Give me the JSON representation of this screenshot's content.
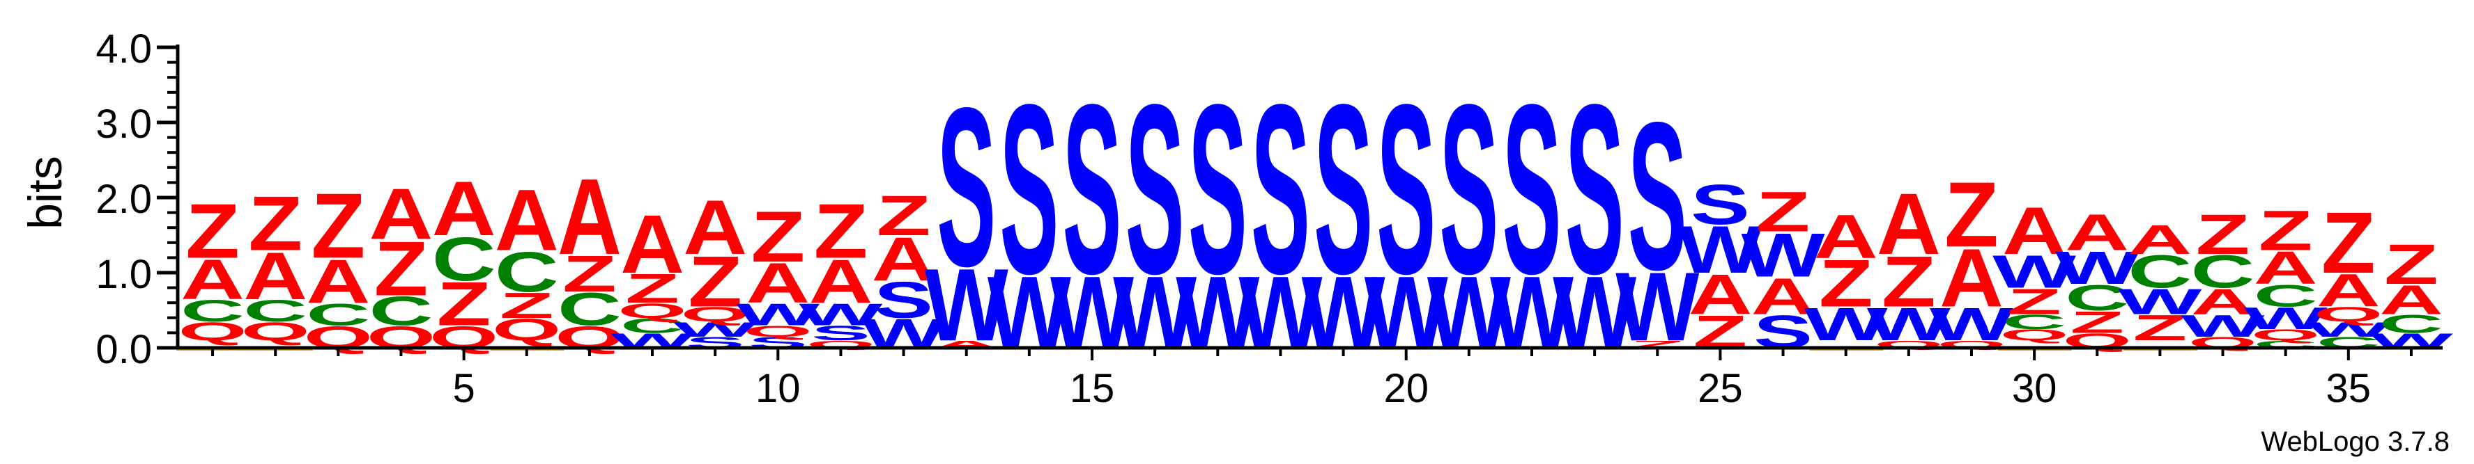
{
  "chart_data": {
    "type": "sequence-logo",
    "ylabel": "bits",
    "ylim": [
      0,
      4
    ],
    "yticks": [
      0.0,
      1.0,
      2.0,
      3.0,
      4.0
    ],
    "ytick_labels": [
      "0.0",
      "1.0",
      "2.0",
      "3.0",
      "4.0"
    ],
    "xrange": [
      1,
      36
    ],
    "xticks": [
      5,
      10,
      15,
      20,
      25,
      30,
      35
    ],
    "xtick_labels": [
      "5",
      "10",
      "15",
      "20",
      "25",
      "30",
      "35"
    ],
    "colors": {
      "Z": "#ff0000",
      "A": "#ff0000",
      "Q": "#ff0000",
      "C": "#008000",
      "S": "#0000ff",
      "W": "#0000ff",
      "X": "#ffa500"
    },
    "positions": [
      {
        "pos": 1,
        "stack": [
          {
            "letter": "X",
            "bits": 0.1
          },
          {
            "letter": "Q",
            "bits": 0.25
          },
          {
            "letter": "C",
            "bits": 0.3
          },
          {
            "letter": "A",
            "bits": 0.55
          },
          {
            "letter": "Z",
            "bits": 0.75
          }
        ]
      },
      {
        "pos": 2,
        "stack": [
          {
            "letter": "X",
            "bits": 0.1
          },
          {
            "letter": "Q",
            "bits": 0.25
          },
          {
            "letter": "C",
            "bits": 0.3
          },
          {
            "letter": "A",
            "bits": 0.65
          },
          {
            "letter": "Z",
            "bits": 0.75
          }
        ]
      },
      {
        "pos": 3,
        "stack": [
          {
            "letter": "Q",
            "bits": 0.3
          },
          {
            "letter": "C",
            "bits": 0.3
          },
          {
            "letter": "A",
            "bits": 0.6
          },
          {
            "letter": "Z",
            "bits": 0.9
          }
        ]
      },
      {
        "pos": 4,
        "stack": [
          {
            "letter": "Q",
            "bits": 0.3
          },
          {
            "letter": "C",
            "bits": 0.4
          },
          {
            "letter": "Z",
            "bits": 0.75
          },
          {
            "letter": "A",
            "bits": 0.7
          }
        ]
      },
      {
        "pos": 5,
        "stack": [
          {
            "letter": "Q",
            "bits": 0.3
          },
          {
            "letter": "Z",
            "bits": 0.6
          },
          {
            "letter": "C",
            "bits": 0.6
          },
          {
            "letter": "A",
            "bits": 0.75
          }
        ]
      },
      {
        "pos": 6,
        "stack": [
          {
            "letter": "X",
            "bits": 0.1
          },
          {
            "letter": "Q",
            "bits": 0.3
          },
          {
            "letter": "Z",
            "bits": 0.35
          },
          {
            "letter": "C",
            "bits": 0.55
          },
          {
            "letter": "A",
            "bits": 0.85
          }
        ]
      },
      {
        "pos": 7,
        "stack": [
          {
            "letter": "Q",
            "bits": 0.3
          },
          {
            "letter": "C",
            "bits": 0.45
          },
          {
            "letter": "Z",
            "bits": 0.5
          },
          {
            "letter": "A",
            "bits": 1.05
          }
        ]
      },
      {
        "pos": 8,
        "stack": [
          {
            "letter": "W",
            "bits": 0.2
          },
          {
            "letter": "C",
            "bits": 0.2
          },
          {
            "letter": "Q",
            "bits": 0.2
          },
          {
            "letter": "Z",
            "bits": 0.4
          },
          {
            "letter": "A",
            "bits": 0.8
          }
        ]
      },
      {
        "pos": 9,
        "stack": [
          {
            "letter": "S",
            "bits": 0.15
          },
          {
            "letter": "W",
            "bits": 0.2
          },
          {
            "letter": "Q",
            "bits": 0.2
          },
          {
            "letter": "Z",
            "bits": 0.7
          },
          {
            "letter": "A",
            "bits": 0.75
          }
        ]
      },
      {
        "pos": 10,
        "stack": [
          {
            "letter": "S",
            "bits": 0.15
          },
          {
            "letter": "Q",
            "bits": 0.15
          },
          {
            "letter": "W",
            "bits": 0.3
          },
          {
            "letter": "A",
            "bits": 0.55
          },
          {
            "letter": "Z",
            "bits": 0.7
          }
        ]
      },
      {
        "pos": 11,
        "stack": [
          {
            "letter": "Q",
            "bits": 0.1
          },
          {
            "letter": "S",
            "bits": 0.2
          },
          {
            "letter": "W",
            "bits": 0.3
          },
          {
            "letter": "A",
            "bits": 0.6
          },
          {
            "letter": "Z",
            "bits": 0.75
          }
        ]
      },
      {
        "pos": 12,
        "stack": [
          {
            "letter": "W",
            "bits": 0.4
          },
          {
            "letter": "S",
            "bits": 0.5
          },
          {
            "letter": "A",
            "bits": 0.6
          },
          {
            "letter": "Z",
            "bits": 0.55
          }
        ]
      },
      {
        "pos": 13,
        "stack": [
          {
            "letter": "A",
            "bits": 0.1
          },
          {
            "letter": "W",
            "bits": 1.0
          },
          {
            "letter": "S",
            "bits": 2.2
          }
        ]
      },
      {
        "pos": 14,
        "stack": [
          {
            "letter": "W",
            "bits": 1.0
          },
          {
            "letter": "S",
            "bits": 2.35
          }
        ]
      },
      {
        "pos": 15,
        "stack": [
          {
            "letter": "W",
            "bits": 1.0
          },
          {
            "letter": "S",
            "bits": 2.35
          }
        ]
      },
      {
        "pos": 16,
        "stack": [
          {
            "letter": "W",
            "bits": 1.0
          },
          {
            "letter": "S",
            "bits": 2.35
          }
        ]
      },
      {
        "pos": 17,
        "stack": [
          {
            "letter": "W",
            "bits": 1.0
          },
          {
            "letter": "S",
            "bits": 2.35
          }
        ]
      },
      {
        "pos": 18,
        "stack": [
          {
            "letter": "W",
            "bits": 1.0
          },
          {
            "letter": "S",
            "bits": 2.35
          }
        ]
      },
      {
        "pos": 19,
        "stack": [
          {
            "letter": "W",
            "bits": 1.0
          },
          {
            "letter": "S",
            "bits": 2.35
          }
        ]
      },
      {
        "pos": 20,
        "stack": [
          {
            "letter": "W",
            "bits": 1.0
          },
          {
            "letter": "S",
            "bits": 2.35
          }
        ]
      },
      {
        "pos": 21,
        "stack": [
          {
            "letter": "W",
            "bits": 1.0
          },
          {
            "letter": "S",
            "bits": 2.35
          }
        ]
      },
      {
        "pos": 22,
        "stack": [
          {
            "letter": "W",
            "bits": 1.0
          },
          {
            "letter": "S",
            "bits": 2.35
          }
        ]
      },
      {
        "pos": 23,
        "stack": [
          {
            "letter": "W",
            "bits": 1.0
          },
          {
            "letter": "S",
            "bits": 2.35
          }
        ]
      },
      {
        "pos": 24,
        "stack": [
          {
            "letter": "Z",
            "bits": 0.1
          },
          {
            "letter": "W",
            "bits": 0.95
          },
          {
            "letter": "S",
            "bits": 2.05
          }
        ]
      },
      {
        "pos": 25,
        "stack": [
          {
            "letter": "Z",
            "bits": 0.45
          },
          {
            "letter": "A",
            "bits": 0.55
          },
          {
            "letter": "W",
            "bits": 0.65
          },
          {
            "letter": "S",
            "bits": 0.55
          }
        ]
      },
      {
        "pos": 26,
        "stack": [
          {
            "letter": "S",
            "bits": 0.45
          },
          {
            "letter": "A",
            "bits": 0.5
          },
          {
            "letter": "W",
            "bits": 0.6
          },
          {
            "letter": "Z",
            "bits": 0.55
          }
        ]
      },
      {
        "pos": 27,
        "stack": [
          {
            "letter": "X",
            "bits": 0.1
          },
          {
            "letter": "W",
            "bits": 0.45
          },
          {
            "letter": "Z",
            "bits": 0.65
          },
          {
            "letter": "A",
            "bits": 0.6
          }
        ]
      },
      {
        "pos": 28,
        "stack": [
          {
            "letter": "Q",
            "bits": 0.1
          },
          {
            "letter": "W",
            "bits": 0.45
          },
          {
            "letter": "Z",
            "bits": 0.7
          },
          {
            "letter": "A",
            "bits": 0.85
          }
        ]
      },
      {
        "pos": 29,
        "stack": [
          {
            "letter": "Q",
            "bits": 0.1
          },
          {
            "letter": "W",
            "bits": 0.45
          },
          {
            "letter": "A",
            "bits": 0.8
          },
          {
            "letter": "Z",
            "bits": 0.9
          }
        ]
      },
      {
        "pos": 30,
        "stack": [
          {
            "letter": "X",
            "bits": 0.1
          },
          {
            "letter": "Q",
            "bits": 0.15
          },
          {
            "letter": "C",
            "bits": 0.2
          },
          {
            "letter": "Z",
            "bits": 0.35
          },
          {
            "letter": "W",
            "bits": 0.45
          },
          {
            "letter": "A",
            "bits": 0.65
          }
        ]
      },
      {
        "pos": 31,
        "stack": [
          {
            "letter": "Q",
            "bits": 0.2
          },
          {
            "letter": "Z",
            "bits": 0.3
          },
          {
            "letter": "C",
            "bits": 0.35
          },
          {
            "letter": "W",
            "bits": 0.45
          },
          {
            "letter": "A",
            "bits": 0.5
          }
        ]
      },
      {
        "pos": 32,
        "stack": [
          {
            "letter": "X",
            "bits": 0.1
          },
          {
            "letter": "Z",
            "bits": 0.35
          },
          {
            "letter": "W",
            "bits": 0.35
          },
          {
            "letter": "C",
            "bits": 0.45
          },
          {
            "letter": "A",
            "bits": 0.4
          }
        ]
      },
      {
        "pos": 33,
        "stack": [
          {
            "letter": "Q",
            "bits": 0.15
          },
          {
            "letter": "W",
            "bits": 0.3
          },
          {
            "letter": "A",
            "bits": 0.35
          },
          {
            "letter": "C",
            "bits": 0.45
          },
          {
            "letter": "Z",
            "bits": 0.55
          }
        ]
      },
      {
        "pos": 34,
        "stack": [
          {
            "letter": "C",
            "bits": 0.1
          },
          {
            "letter": "Q",
            "bits": 0.15
          },
          {
            "letter": "W",
            "bits": 0.3
          },
          {
            "letter": "C",
            "bits": 0.3
          },
          {
            "letter": "A",
            "bits": 0.45
          },
          {
            "letter": "Z",
            "bits": 0.55
          }
        ]
      },
      {
        "pos": 35,
        "stack": [
          {
            "letter": "C",
            "bits": 0.15
          },
          {
            "letter": "W",
            "bits": 0.2
          },
          {
            "letter": "Q",
            "bits": 0.2
          },
          {
            "letter": "A",
            "bits": 0.45
          },
          {
            "letter": "Z",
            "bits": 0.85
          }
        ]
      },
      {
        "pos": 36,
        "stack": [
          {
            "letter": "W",
            "bits": 0.2
          },
          {
            "letter": "C",
            "bits": 0.25
          },
          {
            "letter": "A",
            "bits": 0.4
          },
          {
            "letter": "Z",
            "bits": 0.55
          }
        ]
      }
    ]
  },
  "footer": {
    "version": "WebLogo 3.7.8"
  }
}
